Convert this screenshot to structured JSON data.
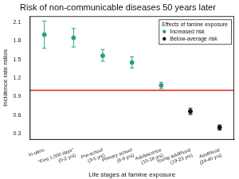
{
  "chart_data": {
    "type": "errorbar",
    "title": "Risk of non-communicable diseases 50 years later",
    "x_label": "Life stages at famine exposure",
    "y_label": "Incidence rate ratios",
    "categories": [
      "In-utero",
      "\"First 1,000 days\" (0-2 yrs)",
      "Pre-school (3-5 yrs)",
      "Primary school (6-9 yrs)",
      "Adolescence (10-18 yrs)",
      "Young adulthood (19-23 yrs)",
      "Adulthood (24-40 yrs)"
    ],
    "series": [
      {
        "name": "Increased risk",
        "color": "#2a9d86",
        "values": [
          1.9,
          1.85,
          1.56,
          1.45,
          1.08,
          null,
          null
        ],
        "lower": [
          1.68,
          1.7,
          1.47,
          1.36,
          1.03,
          null,
          null
        ],
        "upper": [
          2.12,
          2.0,
          1.66,
          1.54,
          1.13,
          null,
          null
        ]
      },
      {
        "name": "Below-average risk",
        "color": "#111111",
        "values": [
          null,
          null,
          null,
          null,
          null,
          0.66,
          0.4
        ],
        "lower": [
          null,
          null,
          null,
          null,
          null,
          0.61,
          0.36
        ],
        "upper": [
          null,
          null,
          null,
          null,
          null,
          0.71,
          0.44
        ]
      }
    ],
    "legend_title": "Effects of famine exposure",
    "legend": "top-right",
    "hline": 1,
    "hline_color": "#e41a1c",
    "ylim": [
      0.2,
      2.2
    ],
    "yticks": [
      0.3,
      0.6,
      0.9,
      1.2,
      1.5,
      1.8,
      2.1
    ],
    "grid": false
  }
}
